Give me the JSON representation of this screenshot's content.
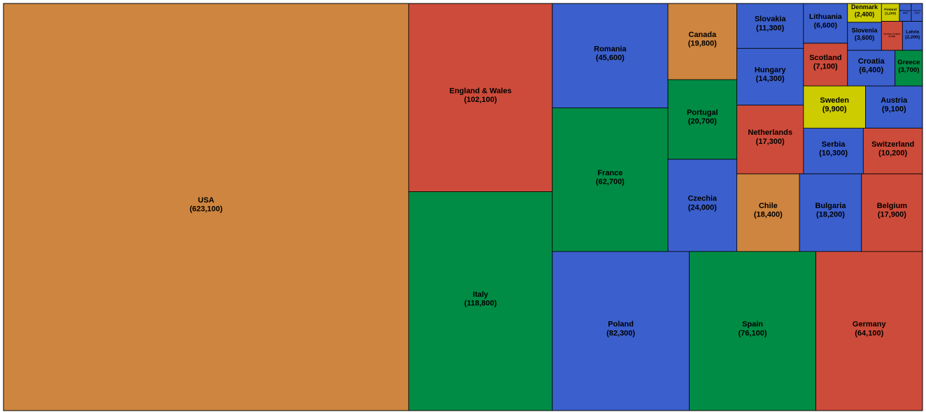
{
  "chart_data": {
    "type": "treemap",
    "categories": [
      "USA",
      "Italy",
      "England & Wales",
      "Poland",
      "Spain",
      "Germany",
      "France",
      "Romania",
      "Czechia",
      "Portugal",
      "Canada",
      "Chile",
      "Bulgaria",
      "Belgium",
      "Netherlands",
      "Hungary",
      "Slovakia",
      "Serbia",
      "Switzerland",
      "Sweden",
      "Austria",
      "Scotland",
      "Lithuania",
      "Croatia",
      "Greece",
      "Slovenia",
      "Denmark",
      "Northern Ireland",
      "Latvia",
      "Finland",
      "Montenegro",
      "Estonia"
    ],
    "values": [
      623100,
      118800,
      102100,
      82300,
      76100,
      64100,
      62700,
      45600,
      24000,
      20700,
      19800,
      18400,
      18200,
      17900,
      17300,
      14300,
      11300,
      10300,
      10200,
      9900,
      9100,
      7100,
      6600,
      6400,
      3700,
      3600,
      2400,
      2300,
      2200,
      1200,
      800,
      750
    ],
    "value_labels": [
      "(623,100)",
      "(118,800)",
      "(102,100)",
      "(82,300)",
      "(76,100)",
      "(64,100)",
      "(62,700)",
      "(45,600)",
      "(24,000)",
      "(20,700)",
      "(19,800)",
      "(18,400)",
      "(18,200)",
      "(17,900)",
      "(17,300)",
      "(14,300)",
      "(11,300)",
      "(10,300)",
      "(10,200)",
      "(9,900)",
      "(9,100)",
      "(7,100)",
      "(6,600)",
      "(6,400)",
      "(3,700)",
      "(3,600)",
      "(2,400)",
      "(2,300)",
      "(2,200)",
      "(1,200)",
      "(800)",
      "(750)"
    ],
    "colors": [
      "#cd853f",
      "#008c45",
      "#cd4b3a",
      "#3b5fcc",
      "#008c45",
      "#cd4b3a",
      "#008c45",
      "#3b5fcc",
      "#3b5fcc",
      "#008c45",
      "#cd853f",
      "#cd853f",
      "#3b5fcc",
      "#cd4b3a",
      "#cd4b3a",
      "#3b5fcc",
      "#3b5fcc",
      "#3b5fcc",
      "#cd4b3a",
      "#cccc00",
      "#3b5fcc",
      "#cd4b3a",
      "#3b5fcc",
      "#3b5fcc",
      "#008c45",
      "#3b5fcc",
      "#cccc00",
      "#cd4b3a",
      "#3b5fcc",
      "#cccc00",
      "#3b5fcc",
      "#3b5fcc"
    ]
  }
}
